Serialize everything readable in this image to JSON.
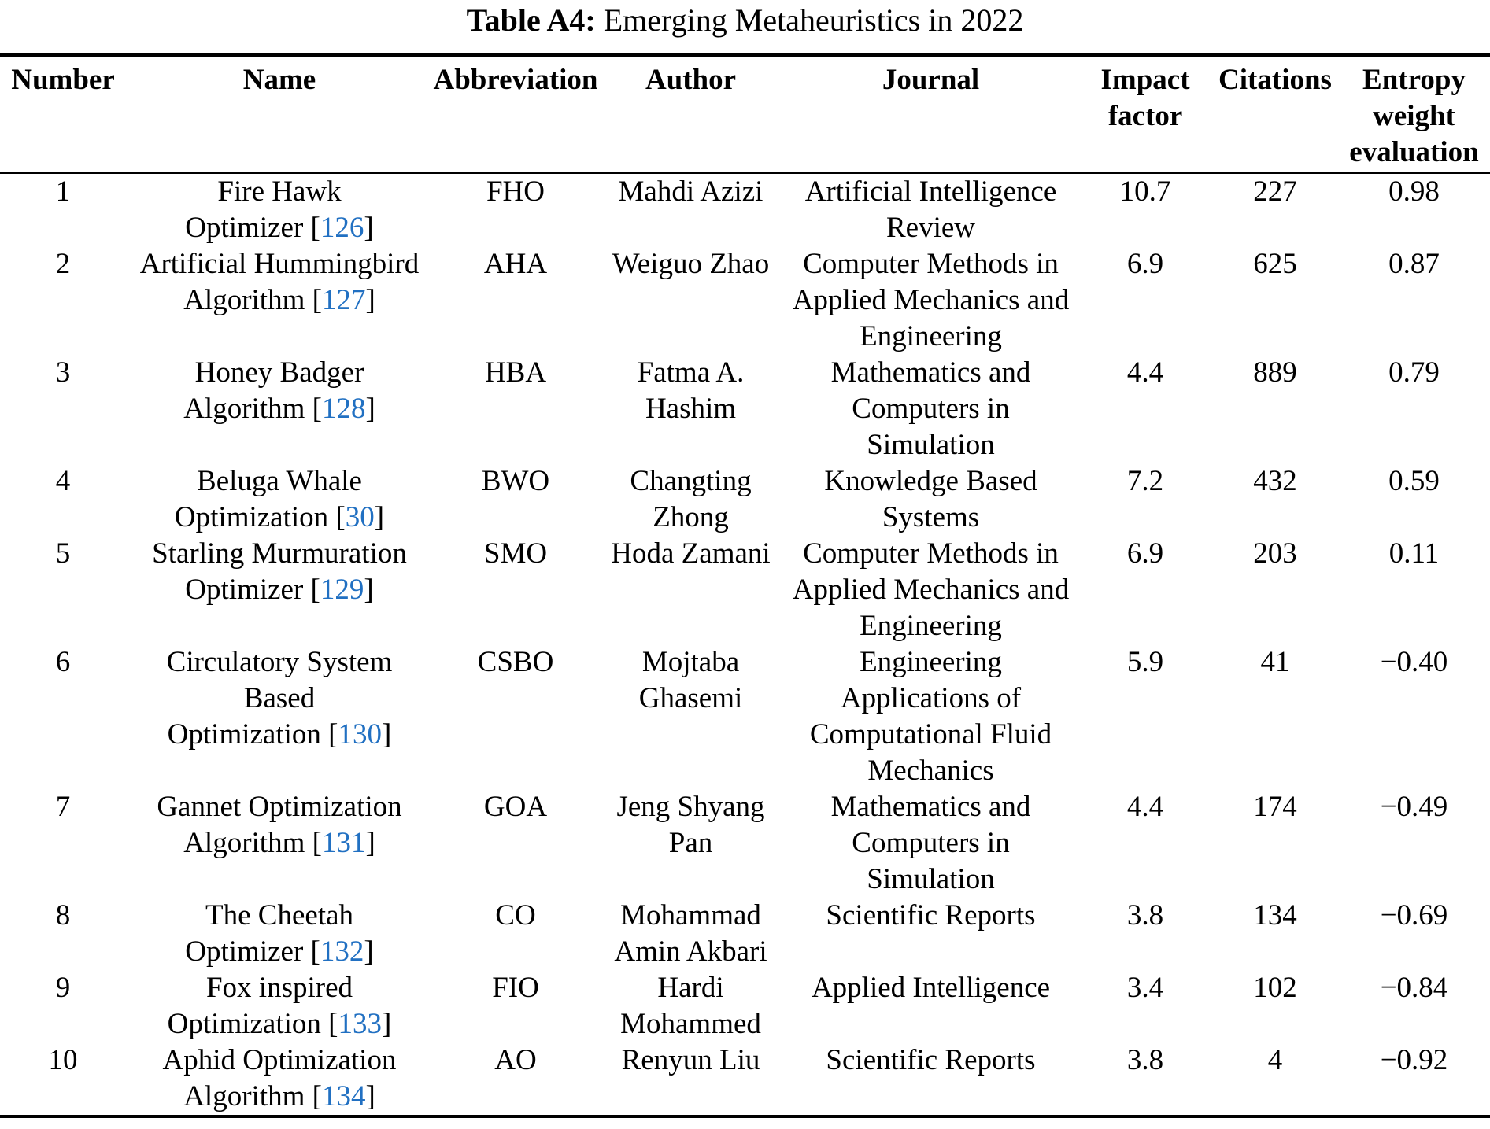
{
  "caption": {
    "label": "Table A4:",
    "title": "Emerging Metaheuristics in 2022"
  },
  "symbols": {
    "cite_open": "[",
    "cite_close": "]"
  },
  "colors": {
    "link": "#2170c2",
    "text": "#000000",
    "page_background": "#ffffff"
  },
  "table": {
    "column_headers": [
      {
        "id": "number",
        "lines": [
          "Number"
        ]
      },
      {
        "id": "name",
        "lines": [
          "Name"
        ]
      },
      {
        "id": "abbreviation",
        "lines": [
          "Abbreviation"
        ]
      },
      {
        "id": "author",
        "lines": [
          "Author"
        ]
      },
      {
        "id": "journal",
        "lines": [
          "Journal"
        ]
      },
      {
        "id": "impact-factor",
        "lines": [
          "Impact",
          "factor"
        ]
      },
      {
        "id": "citations",
        "lines": [
          "Citations"
        ]
      },
      {
        "id": "entropy-weight-evaluation",
        "lines": [
          "Entropy",
          "weight",
          "evaluation"
        ]
      }
    ],
    "rows": [
      {
        "number": "1",
        "name_lines": [
          "Fire Hawk",
          "Optimizer"
        ],
        "ref": "126",
        "abbreviation": "FHO",
        "author_lines": [
          "Mahdi Azizi"
        ],
        "journal_lines": [
          "Artificial Intelligence",
          "Review"
        ],
        "impact_factor": "10.7",
        "citations": "227",
        "entropy": "0.98"
      },
      {
        "number": "2",
        "name_lines": [
          "Artificial Hummingbird",
          "Algorithm"
        ],
        "ref": "127",
        "abbreviation": "AHA",
        "author_lines": [
          "Weiguo Zhao"
        ],
        "journal_lines": [
          "Computer Methods in",
          "Applied Mechanics and",
          "Engineering"
        ],
        "impact_factor": "6.9",
        "citations": "625",
        "entropy": "0.87"
      },
      {
        "number": "3",
        "name_lines": [
          "Honey Badger",
          "Algorithm"
        ],
        "ref": "128",
        "abbreviation": "HBA",
        "author_lines": [
          "Fatma A.",
          "Hashim"
        ],
        "journal_lines": [
          "Mathematics and",
          "Computers in",
          "Simulation"
        ],
        "impact_factor": "4.4",
        "citations": "889",
        "entropy": "0.79"
      },
      {
        "number": "4",
        "name_lines": [
          "Beluga Whale",
          "Optimization"
        ],
        "ref": "30",
        "abbreviation": "BWO",
        "author_lines": [
          "Changting",
          "Zhong"
        ],
        "journal_lines": [
          "Knowledge Based",
          "Systems"
        ],
        "impact_factor": "7.2",
        "citations": "432",
        "entropy": "0.59"
      },
      {
        "number": "5",
        "name_lines": [
          "Starling Murmuration",
          "Optimizer"
        ],
        "ref": "129",
        "abbreviation": "SMO",
        "author_lines": [
          "Hoda Zamani"
        ],
        "journal_lines": [
          "Computer Methods in",
          "Applied Mechanics and",
          "Engineering"
        ],
        "impact_factor": "6.9",
        "citations": "203",
        "entropy": "0.11"
      },
      {
        "number": "6",
        "name_lines": [
          "Circulatory System",
          "Based",
          "Optimization"
        ],
        "ref": "130",
        "abbreviation": "CSBO",
        "author_lines": [
          "Mojtaba",
          "Ghasemi"
        ],
        "journal_lines": [
          "Engineering",
          "Applications of",
          "Computational Fluid",
          "Mechanics"
        ],
        "impact_factor": "5.9",
        "citations": "41",
        "entropy": "−0.40"
      },
      {
        "number": "7",
        "name_lines": [
          "Gannet Optimization",
          "Algorithm"
        ],
        "ref": "131",
        "abbreviation": "GOA",
        "author_lines": [
          "Jeng Shyang",
          "Pan"
        ],
        "journal_lines": [
          "Mathematics and",
          "Computers in",
          "Simulation"
        ],
        "impact_factor": "4.4",
        "citations": "174",
        "entropy": "−0.49"
      },
      {
        "number": "8",
        "name_lines": [
          "The Cheetah",
          "Optimizer"
        ],
        "ref": "132",
        "abbreviation": "CO",
        "author_lines": [
          "Mohammad",
          "Amin Akbari"
        ],
        "journal_lines": [
          "Scientific Reports"
        ],
        "impact_factor": "3.8",
        "citations": "134",
        "entropy": "−0.69"
      },
      {
        "number": "9",
        "name_lines": [
          "Fox inspired",
          "Optimization"
        ],
        "ref": "133",
        "abbreviation": "FIO",
        "author_lines": [
          "Hardi",
          "Mohammed"
        ],
        "journal_lines": [
          "Applied Intelligence"
        ],
        "impact_factor": "3.4",
        "citations": "102",
        "entropy": "−0.84"
      },
      {
        "number": "10",
        "name_lines": [
          "Aphid Optimization",
          "Algorithm"
        ],
        "ref": "134",
        "abbreviation": "AO",
        "author_lines": [
          "Renyun Liu"
        ],
        "journal_lines": [
          "Scientific Reports"
        ],
        "impact_factor": "3.8",
        "citations": "4",
        "entropy": "−0.92"
      }
    ]
  }
}
